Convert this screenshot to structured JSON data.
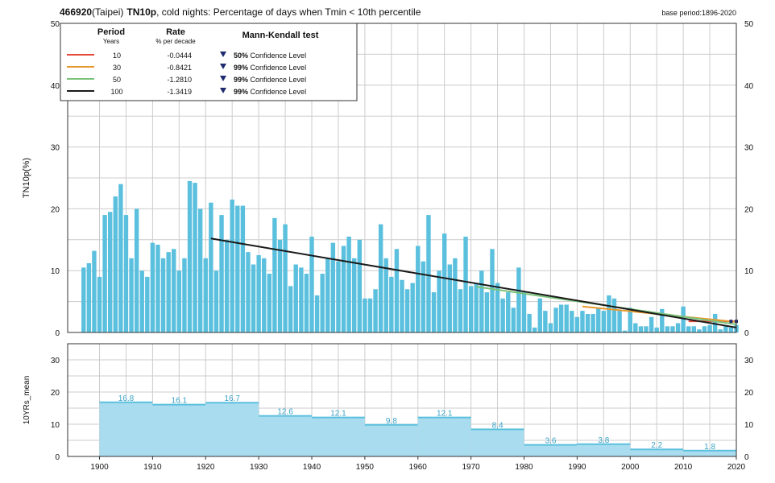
{
  "header": {
    "station": "466920",
    "station_name": "(Taipei)",
    "index": "TN10p",
    "description": ", cold nights: Percentage of days when Tmin < 10th percentile",
    "base_period": "base period:1896-2020"
  },
  "colors": {
    "bar": "#5bc0de",
    "decadal_fill": "#a9dcef",
    "decadal_line": "#5bc0de",
    "trend_10": "#e8483b",
    "trend_30": "#e69a2e",
    "trend_50": "#7ac27a",
    "trend_100": "#1a1a1a",
    "grid": "#cccccc",
    "marker": "#1f2a6e"
  },
  "legend": {
    "period_header": "Period",
    "period_unit": "Years",
    "rate_header": "Rate",
    "rate_unit": "% per decade",
    "test_header": "Mann-Kendall test",
    "rows": [
      {
        "period": "10",
        "rate": "-0.0444",
        "level": "50%",
        "text": "Confidence Level",
        "color": "#e8483b"
      },
      {
        "period": "30",
        "rate": "-0.8421",
        "level": "99%",
        "text": "Confidence Level",
        "color": "#e69a2e"
      },
      {
        "period": "50",
        "rate": "-1.2810",
        "level": "99%",
        "text": "Confidence Level",
        "color": "#7ac27a"
      },
      {
        "period": "100",
        "rate": "-1.3419",
        "level": "99%",
        "text": "Confidence Level",
        "color": "#1a1a1a"
      }
    ]
  },
  "chart_data": [
    {
      "type": "bar",
      "title": "466920(Taipei) TN10p, cold nights: Percentage of days when Tmin < 10th percentile",
      "ylabel": "TN10p(%)",
      "xlim": [
        1894,
        2020
      ],
      "ylim": [
        0,
        50
      ],
      "yticks": [
        0,
        10,
        20,
        30,
        40,
        50
      ],
      "xticks": [
        1900,
        1910,
        1920,
        1930,
        1940,
        1950,
        1960,
        1970,
        1980,
        1990,
        2000,
        2010,
        2020
      ],
      "grid": true,
      "legend_position": "top-left",
      "x": [
        1897,
        1898,
        1899,
        1900,
        1901,
        1902,
        1903,
        1904,
        1905,
        1906,
        1907,
        1908,
        1909,
        1910,
        1911,
        1912,
        1913,
        1914,
        1915,
        1916,
        1917,
        1918,
        1919,
        1920,
        1921,
        1922,
        1923,
        1924,
        1925,
        1926,
        1927,
        1928,
        1929,
        1930,
        1931,
        1932,
        1933,
        1934,
        1935,
        1936,
        1937,
        1938,
        1939,
        1940,
        1941,
        1942,
        1943,
        1944,
        1945,
        1946,
        1947,
        1948,
        1949,
        1950,
        1951,
        1952,
        1953,
        1954,
        1955,
        1956,
        1957,
        1958,
        1959,
        1960,
        1961,
        1962,
        1963,
        1964,
        1965,
        1966,
        1967,
        1968,
        1969,
        1970,
        1971,
        1972,
        1973,
        1974,
        1975,
        1976,
        1977,
        1978,
        1979,
        1980,
        1981,
        1982,
        1983,
        1984,
        1985,
        1986,
        1987,
        1988,
        1989,
        1990,
        1991,
        1992,
        1993,
        1994,
        1995,
        1996,
        1997,
        1998,
        1999,
        2000,
        2001,
        2002,
        2003,
        2004,
        2005,
        2006,
        2007,
        2008,
        2009,
        2010,
        2011,
        2012,
        2013,
        2014,
        2015,
        2016,
        2017,
        2018,
        2019,
        2020
      ],
      "values": [
        10.5,
        11.2,
        13.2,
        9.0,
        19.0,
        19.5,
        22.0,
        24.0,
        19.0,
        12.0,
        20.0,
        10.0,
        9.0,
        14.5,
        14.2,
        12.0,
        13.0,
        13.5,
        10.0,
        12.0,
        24.5,
        24.2,
        20.0,
        12.0,
        21.0,
        10.0,
        19.0,
        15.0,
        21.5,
        20.5,
        20.5,
        13.0,
        11.0,
        12.5,
        12.0,
        9.5,
        18.5,
        15.0,
        17.5,
        7.5,
        11.0,
        10.5,
        9.5,
        15.5,
        6.0,
        9.5,
        12.0,
        14.5,
        11.5,
        14.0,
        15.5,
        12.0,
        15.0,
        5.5,
        5.5,
        7.0,
        17.5,
        12.0,
        9.0,
        13.5,
        8.5,
        7.0,
        8.0,
        14.0,
        11.5,
        19.0,
        6.5,
        10.0,
        16.0,
        11.0,
        12.0,
        7.0,
        15.5,
        7.5,
        8.0,
        10.0,
        6.5,
        13.5,
        8.0,
        5.5,
        6.5,
        4.0,
        10.5,
        6.5,
        3.0,
        0.8,
        5.5,
        3.5,
        1.5,
        4.0,
        4.5,
        4.5,
        3.5,
        2.5,
        3.5,
        3.0,
        3.0,
        4.0,
        3.5,
        6.0,
        5.5,
        3.5,
        0.3,
        4.0,
        1.5,
        1.0,
        1.0,
        2.5,
        0.8,
        3.8,
        1.0,
        1.0,
        1.5,
        4.2,
        1.0,
        1.0,
        0.5,
        1.0,
        1.2,
        3.0,
        0.5,
        1.0,
        0.8,
        1.2
      ],
      "trends": [
        {
          "period": "10",
          "x": [
            2011,
            2020
          ],
          "y": [
            1.8,
            1.8
          ]
        },
        {
          "period": "30",
          "x": [
            1991,
            2020
          ],
          "y": [
            4.2,
            1.7
          ]
        },
        {
          "period": "50",
          "x": [
            1971,
            2020
          ],
          "y": [
            7.4,
            1.3
          ]
        },
        {
          "period": "100",
          "x": [
            1921,
            2020
          ],
          "y": [
            15.2,
            0.8
          ]
        }
      ],
      "significance_markers": [
        2019,
        2020
      ]
    },
    {
      "type": "area",
      "ylabel": "10YRs_mean",
      "xlim": [
        1894,
        2020
      ],
      "ylim": [
        0,
        35
      ],
      "yticks": [
        0,
        10,
        20,
        30
      ],
      "xticks": [
        1900,
        1910,
        1920,
        1930,
        1940,
        1950,
        1960,
        1970,
        1980,
        1990,
        2000,
        2010,
        2020
      ],
      "grid": true,
      "decades": [
        {
          "start": 1900,
          "end": 1910,
          "mean": 16.8,
          "label": "16.8"
        },
        {
          "start": 1910,
          "end": 1920,
          "mean": 16.1,
          "label": "16.1"
        },
        {
          "start": 1920,
          "end": 1930,
          "mean": 16.7,
          "label": "16.7"
        },
        {
          "start": 1930,
          "end": 1940,
          "mean": 12.6,
          "label": "12.6"
        },
        {
          "start": 1940,
          "end": 1950,
          "mean": 12.1,
          "label": "12.1"
        },
        {
          "start": 1950,
          "end": 1960,
          "mean": 9.8,
          "label": "9.8"
        },
        {
          "start": 1960,
          "end": 1970,
          "mean": 12.1,
          "label": "12.1"
        },
        {
          "start": 1970,
          "end": 1980,
          "mean": 8.4,
          "label": "8.4"
        },
        {
          "start": 1980,
          "end": 1990,
          "mean": 3.6,
          "label": "3.6"
        },
        {
          "start": 1990,
          "end": 2000,
          "mean": 3.8,
          "label": "3.8"
        },
        {
          "start": 2000,
          "end": 2010,
          "mean": 2.2,
          "label": "2.2"
        },
        {
          "start": 2010,
          "end": 2020,
          "mean": 1.8,
          "label": "1.8"
        }
      ]
    }
  ]
}
